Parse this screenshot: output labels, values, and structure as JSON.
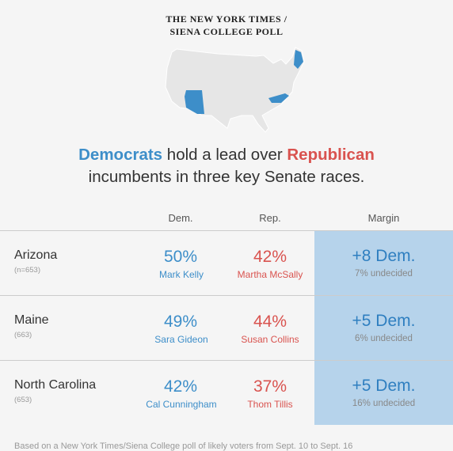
{
  "kicker": {
    "line1": "THE NEW YORK TIMES /",
    "line2": "SIENA COLLEGE POLL"
  },
  "headline": {
    "dem_word": "Democrats",
    "part1": " hold a lead over ",
    "rep_word": "Republican",
    "line2": "incumbents in three key Senate races."
  },
  "columns": {
    "dem": "Dem.",
    "rep": "Rep.",
    "margin": "Margin"
  },
  "rows": [
    {
      "state": "Arizona",
      "n": "(n=653)",
      "dem_pct": "50%",
      "dem_name": "Mark Kelly",
      "rep_pct": "42%",
      "rep_name": "Martha McSally",
      "margin": "+8 Dem.",
      "undecided": "7% undecided"
    },
    {
      "state": "Maine",
      "n": "(663)",
      "dem_pct": "49%",
      "dem_name": "Sara Gideon",
      "rep_pct": "44%",
      "rep_name": "Susan Collins",
      "margin": "+5 Dem.",
      "undecided": "6% undecided"
    },
    {
      "state": "North Carolina",
      "n": "(653)",
      "dem_pct": "42%",
      "dem_name": "Cal Cunningham",
      "rep_pct": "37%",
      "rep_name": "Thom Tillis",
      "margin": "+5 Dem.",
      "undecided": "16% undecided"
    }
  ],
  "footnote": "Based on a New York Times/Siena College poll of likely voters from Sept. 10 to Sept. 16",
  "colors": {
    "dem": "#3d8ec9",
    "rep": "#d9534f",
    "margin_bg": "#b6d3eb",
    "map_base": "#e6e6e6",
    "map_highlight": "#3d8ec9"
  }
}
